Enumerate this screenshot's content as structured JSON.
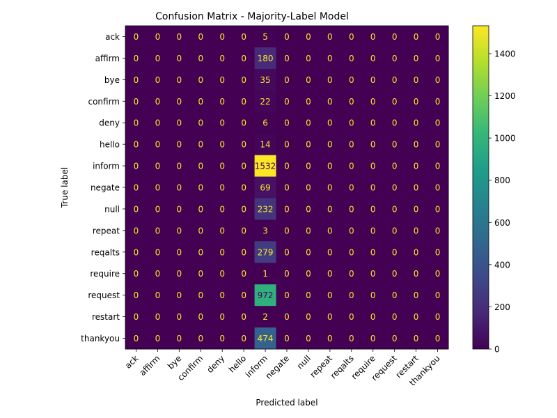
{
  "chart_data": {
    "type": "heatmap",
    "title": "Confusion Matrix - Majority-Label Model",
    "xlabel": "Predicted label",
    "ylabel": "True label",
    "labels": [
      "ack",
      "affirm",
      "bye",
      "confirm",
      "deny",
      "hello",
      "inform",
      "negate",
      "null",
      "repeat",
      "reqalts",
      "require",
      "request",
      "restart",
      "thankyou"
    ],
    "matrix": [
      [
        0,
        0,
        0,
        0,
        0,
        0,
        5,
        0,
        0,
        0,
        0,
        0,
        0,
        0,
        0
      ],
      [
        0,
        0,
        0,
        0,
        0,
        0,
        180,
        0,
        0,
        0,
        0,
        0,
        0,
        0,
        0
      ],
      [
        0,
        0,
        0,
        0,
        0,
        0,
        35,
        0,
        0,
        0,
        0,
        0,
        0,
        0,
        0
      ],
      [
        0,
        0,
        0,
        0,
        0,
        0,
        22,
        0,
        0,
        0,
        0,
        0,
        0,
        0,
        0
      ],
      [
        0,
        0,
        0,
        0,
        0,
        0,
        6,
        0,
        0,
        0,
        0,
        0,
        0,
        0,
        0
      ],
      [
        0,
        0,
        0,
        0,
        0,
        0,
        14,
        0,
        0,
        0,
        0,
        0,
        0,
        0,
        0
      ],
      [
        0,
        0,
        0,
        0,
        0,
        0,
        1532,
        0,
        0,
        0,
        0,
        0,
        0,
        0,
        0
      ],
      [
        0,
        0,
        0,
        0,
        0,
        0,
        69,
        0,
        0,
        0,
        0,
        0,
        0,
        0,
        0
      ],
      [
        0,
        0,
        0,
        0,
        0,
        0,
        232,
        0,
        0,
        0,
        0,
        0,
        0,
        0,
        0
      ],
      [
        0,
        0,
        0,
        0,
        0,
        0,
        3,
        0,
        0,
        0,
        0,
        0,
        0,
        0,
        0
      ],
      [
        0,
        0,
        0,
        0,
        0,
        0,
        279,
        0,
        0,
        0,
        0,
        0,
        0,
        0,
        0
      ],
      [
        0,
        0,
        0,
        0,
        0,
        0,
        1,
        0,
        0,
        0,
        0,
        0,
        0,
        0,
        0
      ],
      [
        0,
        0,
        0,
        0,
        0,
        0,
        972,
        0,
        0,
        0,
        0,
        0,
        0,
        0,
        0
      ],
      [
        0,
        0,
        0,
        0,
        0,
        0,
        2,
        0,
        0,
        0,
        0,
        0,
        0,
        0,
        0
      ],
      [
        0,
        0,
        0,
        0,
        0,
        0,
        474,
        0,
        0,
        0,
        0,
        0,
        0,
        0,
        0
      ]
    ],
    "colormap": "viridis",
    "colorbar": {
      "range": [
        0,
        1532
      ],
      "ticks": [
        0,
        200,
        400,
        600,
        800,
        1000,
        1200,
        1400
      ]
    },
    "colors": {
      "text_light": "#fde725",
      "text_dark": "#440154"
    }
  }
}
